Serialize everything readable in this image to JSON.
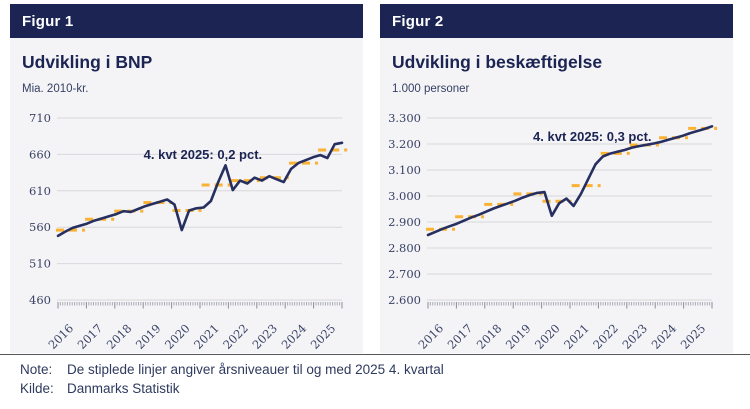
{
  "figures": [
    {
      "bar_label": "Figur 1",
      "title": "Udvikling i BNP",
      "unit": "Mia. 2010-kr."
    },
    {
      "bar_label": "Figur 2",
      "title": "Udvikling i beskæftigelse",
      "unit": "1.000 personer"
    }
  ],
  "note": {
    "label": "Note:",
    "text": "De stiplede linjer angiver årsniveauer til og med 2025 4. kvartal"
  },
  "source": {
    "label": "Kilde:",
    "text": "Danmarks Statistik"
  },
  "colors": {
    "navy_header": "#1b2453",
    "series_line": "#262f60",
    "annual_dash": "#f9b233",
    "gridline": "#d8d8dc",
    "panel_background": "#f4f4f6",
    "tick_minor": "#aaadb8",
    "tick_year": "#8a8d99",
    "note_text": "#2e3a5e"
  },
  "chart_data": [
    {
      "type": "line",
      "title": "Udvikling i BNP",
      "ylabel": "Mia. 2010-kr.",
      "annotation": "4. kvt 2025: 0,2 pct.",
      "x_frequency": "quarterly",
      "x_years": [
        2016,
        2017,
        2018,
        2019,
        2020,
        2021,
        2022,
        2023,
        2024,
        2025
      ],
      "quarterly_values": [
        548,
        554,
        559,
        562,
        565,
        569,
        572,
        575,
        578,
        582,
        581,
        585,
        589,
        592,
        595,
        598,
        591,
        556,
        583,
        586,
        587,
        596,
        622,
        645,
        611,
        624,
        620,
        628,
        624,
        630,
        626,
        622,
        640,
        648,
        652,
        656,
        659,
        655,
        674,
        676
      ],
      "annual_levels": [
        556,
        571,
        582,
        594,
        583,
        618,
        624,
        628,
        648,
        666
      ],
      "ylim": [
        460,
        710
      ],
      "yticks": [
        {
          "value": 710,
          "label": "710"
        },
        {
          "value": 660,
          "label": "660"
        },
        {
          "value": 610,
          "label": "610"
        },
        {
          "value": 560,
          "label": "560"
        },
        {
          "value": 510,
          "label": "510"
        },
        {
          "value": 460,
          "label": "460"
        }
      ],
      "grid": true,
      "legend": "none"
    },
    {
      "type": "line",
      "title": "Udvikling i beskæftigelse",
      "ylabel": "1.000 personer",
      "annotation": "4. kvt 2025: 0,3 pct.",
      "x_frequency": "quarterly",
      "x_years": [
        2016,
        2017,
        2018,
        2019,
        2020,
        2021,
        2022,
        2023,
        2024,
        2025
      ],
      "quarterly_values": [
        2850,
        2862,
        2874,
        2884,
        2894,
        2906,
        2918,
        2928,
        2940,
        2952,
        2962,
        2972,
        2982,
        2994,
        3004,
        3012,
        3015,
        2924,
        2972,
        2990,
        2962,
        3008,
        3065,
        3122,
        3152,
        3163,
        3170,
        3177,
        3186,
        3192,
        3197,
        3202,
        3208,
        3216,
        3224,
        3232,
        3242,
        3250,
        3258,
        3268
      ],
      "annual_levels": [
        2872,
        2920,
        2968,
        3008,
        2980,
        3040,
        3164,
        3196,
        3224,
        3260
      ],
      "ylim": [
        2600,
        3300
      ],
      "yticks": [
        {
          "value": 3300,
          "label": "3.300"
        },
        {
          "value": 3200,
          "label": "3.200"
        },
        {
          "value": 3100,
          "label": "3.100"
        },
        {
          "value": 3000,
          "label": "3.000"
        },
        {
          "value": 2900,
          "label": "2.900"
        },
        {
          "value": 2800,
          "label": "2.800"
        },
        {
          "value": 2700,
          "label": "2.700"
        },
        {
          "value": 2600,
          "label": "2.600"
        }
      ],
      "grid": true,
      "legend": "none"
    }
  ]
}
